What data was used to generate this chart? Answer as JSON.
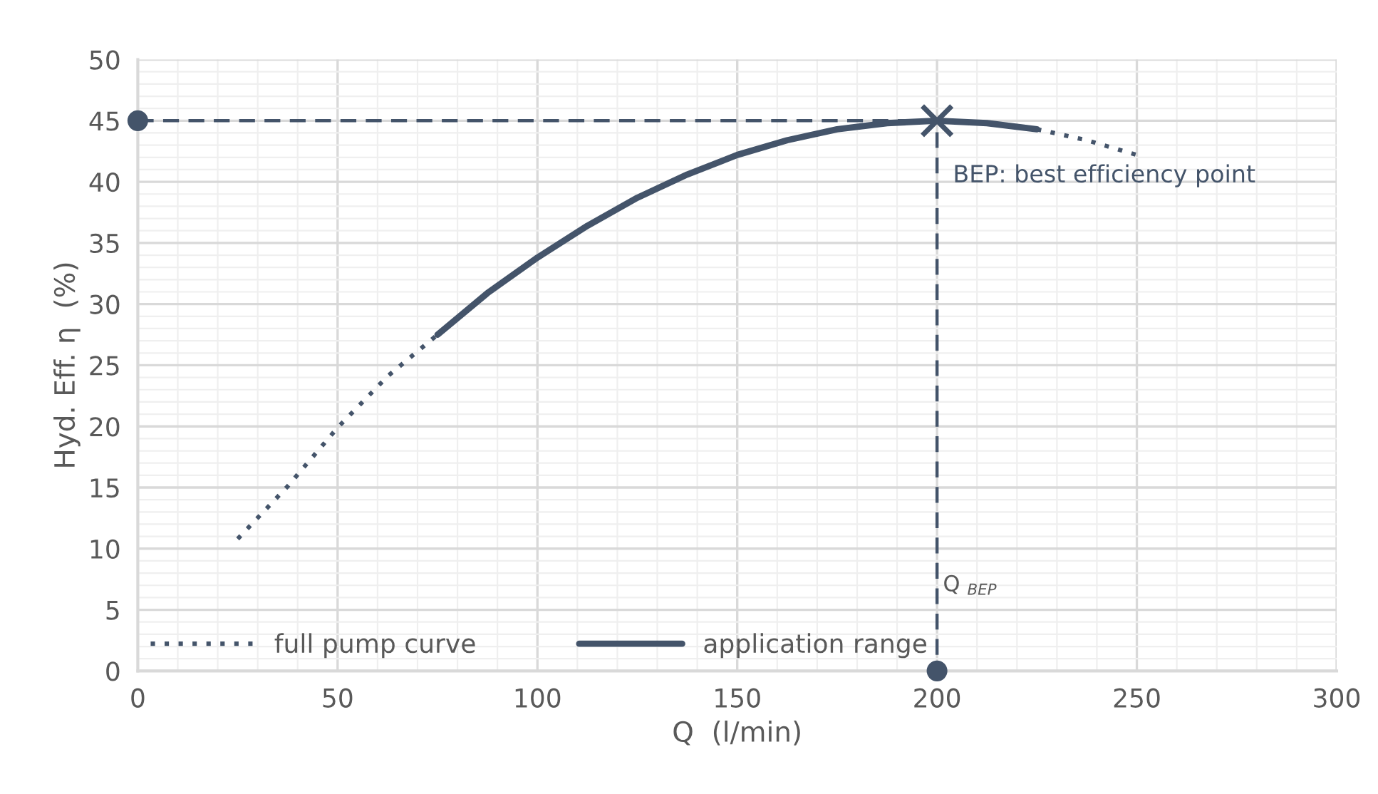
{
  "chart_data": {
    "type": "line",
    "xlabel": "Q  (l/min)",
    "ylabel": "Hyd. Eff. η  (%)",
    "xlim": [
      0,
      300
    ],
    "xticks": [
      0,
      50,
      100,
      150,
      200,
      250,
      300
    ],
    "ylim": [
      0,
      50
    ],
    "yticks": [
      0,
      5,
      10,
      15,
      20,
      25,
      30,
      35,
      40,
      45,
      50
    ],
    "grid": true,
    "legend": "bottom left",
    "series": [
      {
        "name": "full pump curve",
        "color": "#44546a",
        "line_style": "dotted",
        "marker": "none",
        "x": [
          25,
          37.5,
          50,
          62.5,
          75,
          87.5,
          100,
          112.5,
          125,
          137.5,
          150,
          162.5,
          175,
          187.5,
          200,
          212.5,
          225,
          237.5,
          250
        ],
        "values": [
          10.8,
          15.1,
          19.9,
          24.1,
          27.5,
          null,
          null,
          null,
          null,
          null,
          null,
          null,
          null,
          null,
          null,
          null,
          44.3,
          43.4,
          42.2
        ]
      },
      {
        "name": "application range",
        "color": "#44546a",
        "line_style": "solid",
        "marker": "none",
        "x": [
          75,
          87.5,
          100,
          112.5,
          125,
          137.5,
          150,
          162.5,
          175,
          187.5,
          200,
          212.5,
          225
        ],
        "values": [
          27.5,
          30.9,
          33.8,
          36.4,
          38.7,
          40.6,
          42.2,
          43.4,
          44.3,
          44.8,
          45,
          44.8,
          44.3
        ]
      },
      {
        "color": "#44546a",
        "line_style": "dashed",
        "marker": "none",
        "x": [
          0,
          200,
          200
        ],
        "values": [
          45,
          45,
          0
        ]
      },
      {
        "type": "scatter",
        "color": "#44546a",
        "marker": "circle",
        "x": [
          0,
          200
        ],
        "values": [
          45,
          0
        ]
      },
      {
        "type": "scatter",
        "color": "#44546a",
        "marker": "cross",
        "x": [
          200
        ],
        "values": [
          45
        ]
      }
    ],
    "annotations": [
      {
        "text": "BEP: best efficiency point",
        "x": 200,
        "y": 45
      },
      {
        "text": "Q $_{BEP}$",
        "x": 200,
        "y": 7
      }
    ]
  }
}
